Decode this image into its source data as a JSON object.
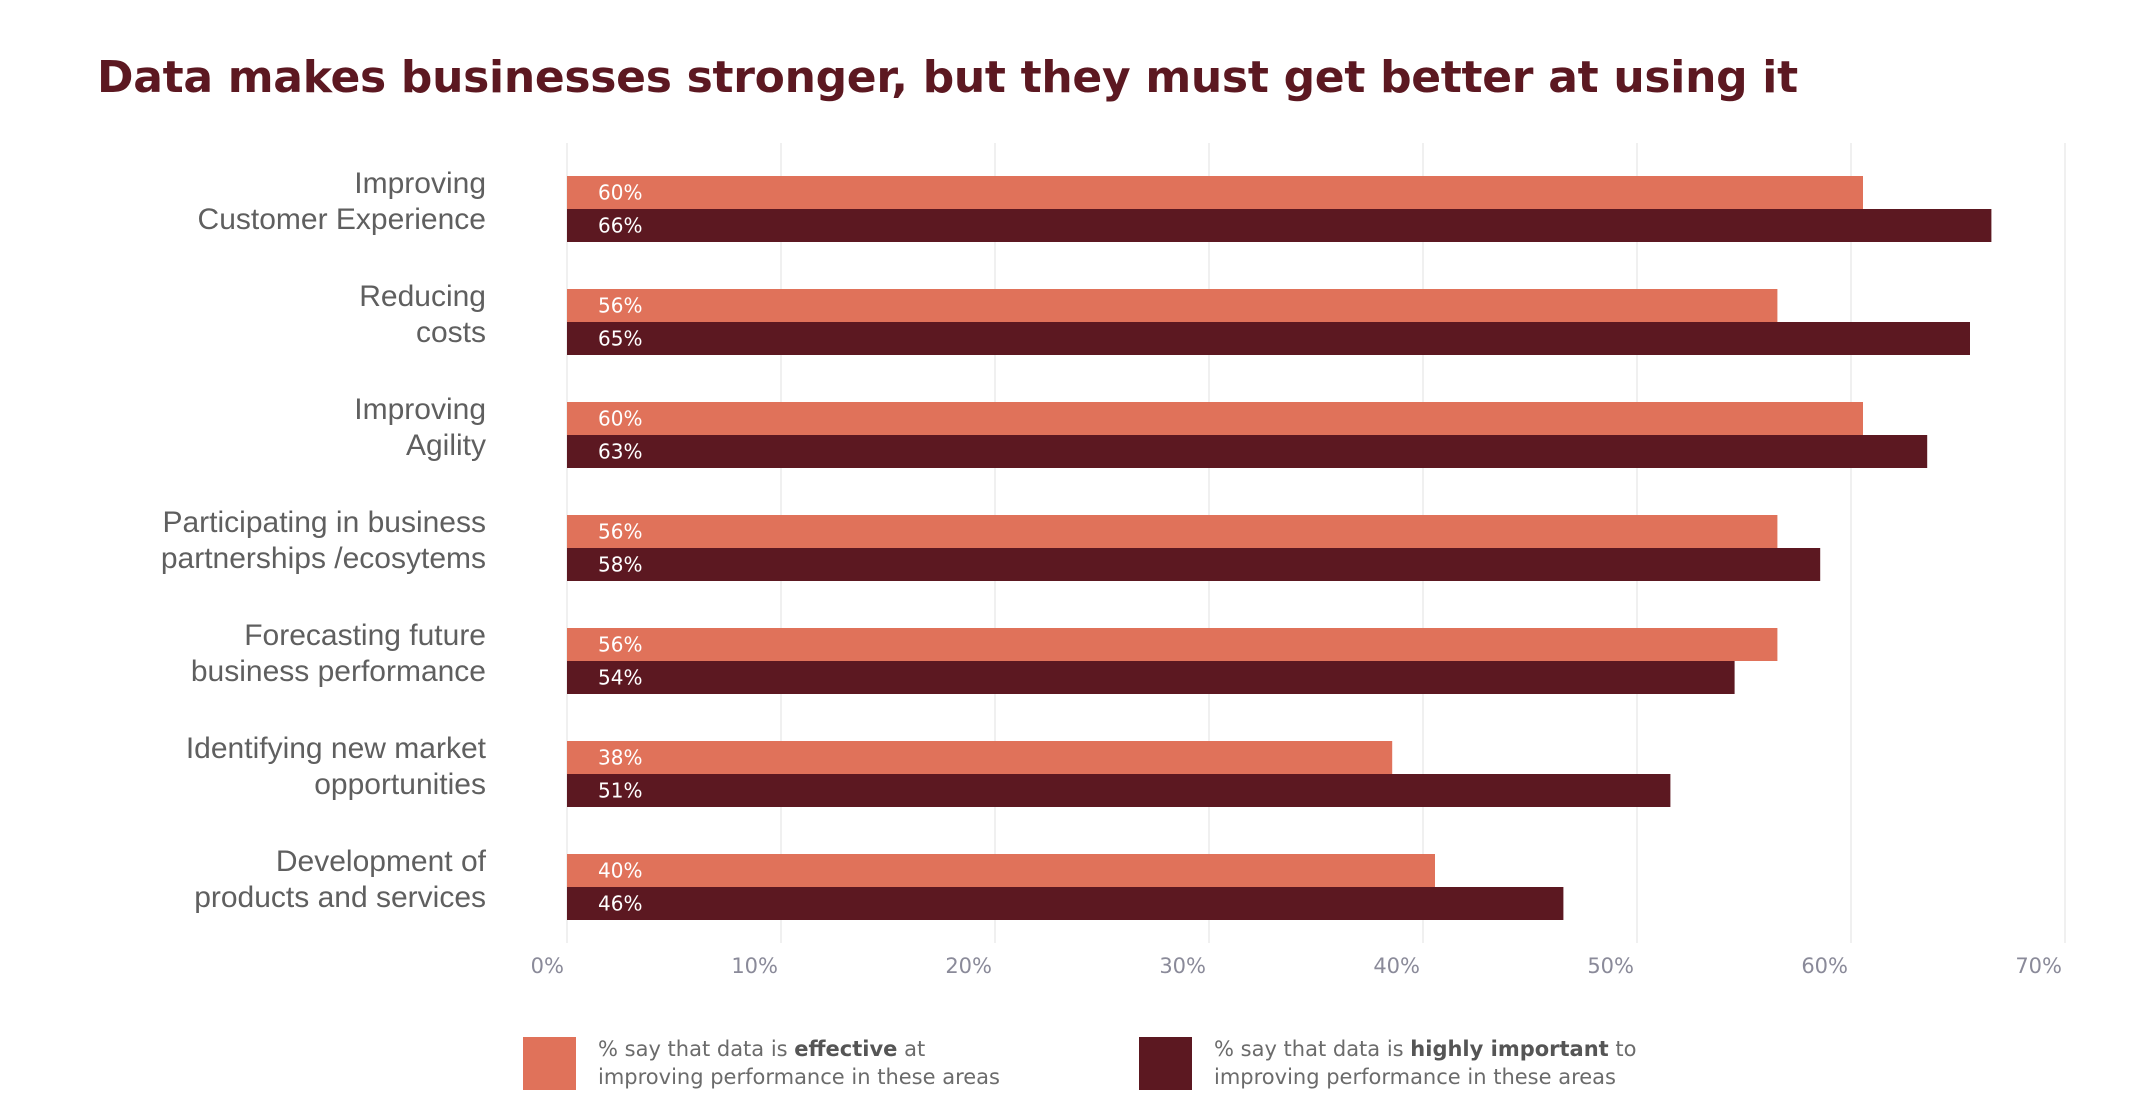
{
  "chart_data": {
    "type": "bar",
    "orientation": "horizontal",
    "title": "Data makes businesses stronger, but they must get better at using it",
    "categories": [
      [
        "Improving",
        "Customer Experience"
      ],
      [
        "Reducing",
        "costs"
      ],
      [
        "Improving",
        "Agility"
      ],
      [
        "Participating in business",
        "partnerships /ecosytems"
      ],
      [
        "Forecasting future",
        "business performance"
      ],
      [
        "Identifying new market",
        "opportunities"
      ],
      [
        "Development of",
        "products and services"
      ]
    ],
    "series": [
      {
        "values": [
          60,
          56,
          60,
          56,
          56,
          38,
          40
        ],
        "labels": [
          "60%",
          "56%",
          "60%",
          "56%",
          "56%",
          "38%",
          "40%"
        ],
        "color": "#e0725a"
      },
      {
        "values": [
          66,
          65,
          63,
          58,
          54,
          51,
          46
        ],
        "labels": [
          "66%",
          "65%",
          "63%",
          "58%",
          "54%",
          "51%",
          "46%"
        ],
        "color": "#5c1821"
      }
    ],
    "xlim": [
      0,
      70
    ],
    "xticks": [
      "0%",
      "10%",
      "20%",
      "30%",
      "40%",
      "50%",
      "60%",
      "70%"
    ],
    "grid": true,
    "legend_position": "bottom"
  },
  "legend": {
    "effective": {
      "prefix": "% say that data is ",
      "bold": "effective",
      "suffix": " at",
      "line2": "improving performance in these areas",
      "color": "#e0725a"
    },
    "important": {
      "prefix": "% say that data is ",
      "bold": "highly important",
      "suffix": " to",
      "line2": "improving performance in these areas",
      "color": "#5c1821"
    }
  },
  "colors": {
    "title": "#5c1821",
    "grid": "#ececec"
  }
}
